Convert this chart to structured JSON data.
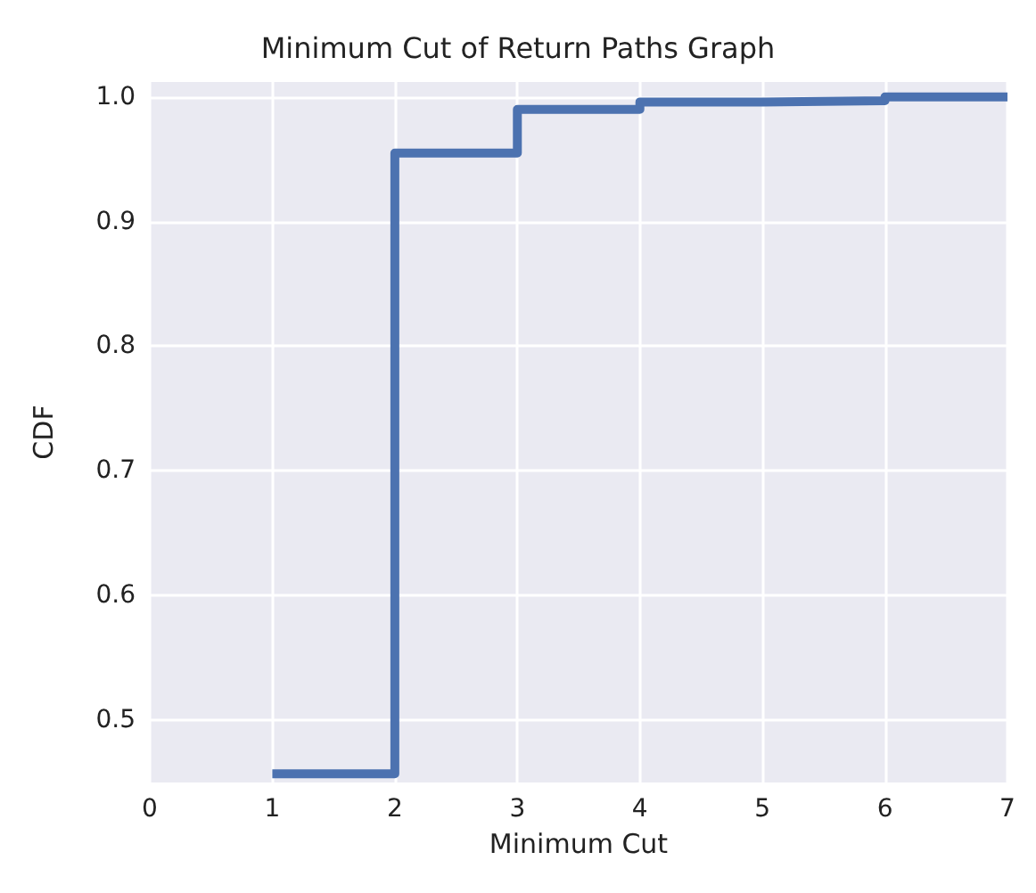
{
  "chart_data": {
    "type": "step",
    "title": "Minimum Cut of Return Paths Graph",
    "xlabel": "Minimum Cut",
    "ylabel": "CDF",
    "x": [
      1,
      2,
      3,
      4,
      5,
      6,
      7
    ],
    "series": [
      {
        "color": "#4c72b0",
        "values": [
          0.457,
          0.955,
          0.99,
          0.996,
          0.997,
          1.0,
          1.0
        ]
      }
    ],
    "xlim": [
      0,
      7
    ],
    "xticks": [
      0,
      1,
      2,
      3,
      4,
      5,
      6,
      7
    ],
    "ylim": [
      0.45,
      1.012
    ],
    "yticks": [
      0.5,
      0.6,
      0.7,
      0.8,
      0.9,
      {
        "value": 1,
        "label": "1.0"
      }
    ],
    "grid": true,
    "marker": "none",
    "line_style": "solid"
  }
}
